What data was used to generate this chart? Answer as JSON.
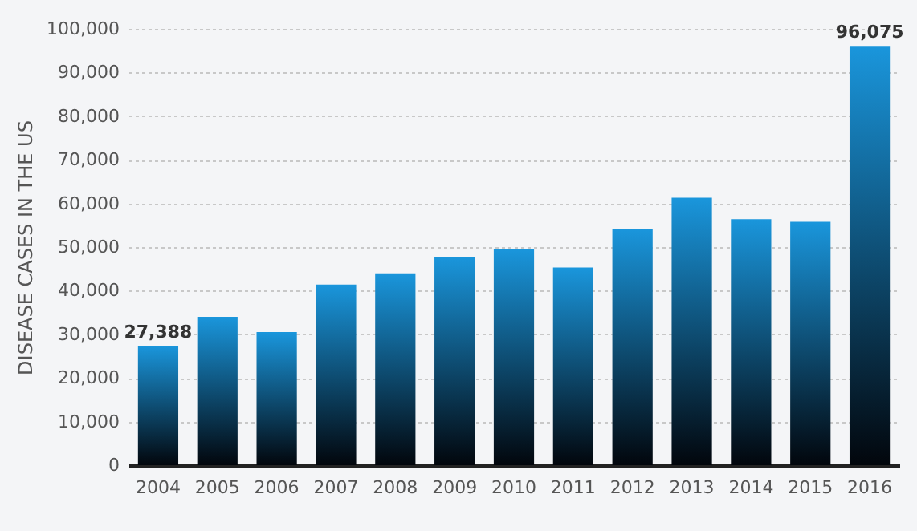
{
  "chart_data": {
    "type": "bar",
    "ylabel": "DISEASE CASES IN THE US",
    "categories": [
      "2004",
      "2005",
      "2006",
      "2007",
      "2008",
      "2009",
      "2010",
      "2011",
      "2012",
      "2013",
      "2014",
      "2015",
      "2016"
    ],
    "values": [
      27388,
      34000,
      30500,
      41400,
      44000,
      47700,
      49500,
      45300,
      54100,
      61300,
      56400,
      55800,
      96075
    ],
    "value_labels": [
      "27,388",
      null,
      null,
      null,
      null,
      null,
      null,
      null,
      null,
      null,
      null,
      null,
      "96,075"
    ],
    "color": "#1a96dc",
    "ylim": [
      0,
      100000
    ],
    "yticks": [
      0,
      {
        "value": 10000,
        "label": "10,000"
      },
      {
        "value": 20000,
        "label": "20,000"
      },
      {
        "value": 30000,
        "label": "30,000"
      },
      {
        "value": 40000,
        "label": "40,000"
      },
      {
        "value": 50000,
        "label": "50,000"
      },
      {
        "value": 60000,
        "label": "60,000"
      },
      {
        "value": 70000,
        "label": "70,000"
      },
      {
        "value": 80000,
        "label": "80,000"
      },
      {
        "value": 90000,
        "label": "90,000"
      },
      {
        "value": 100000,
        "label": "100,000"
      }
    ],
    "grid": "y"
  }
}
